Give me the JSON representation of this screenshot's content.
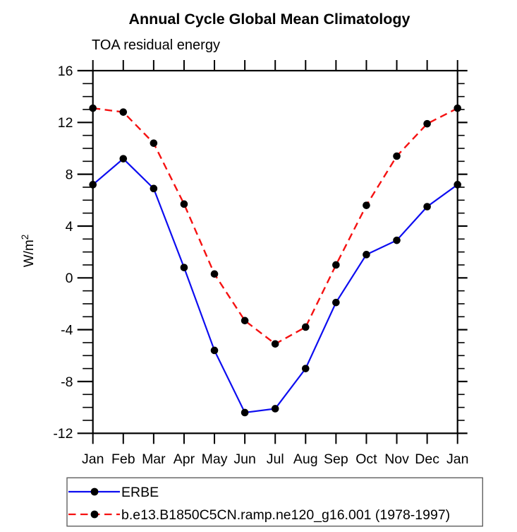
{
  "header": {
    "title": "Annual Cycle Global Mean Climatology",
    "subtitle": "TOA residual energy"
  },
  "chart_data": {
    "type": "line",
    "title": "Annual Cycle Global Mean Climatology",
    "subtitle": "TOA residual energy",
    "categories": [
      "Jan",
      "Feb",
      "Mar",
      "Apr",
      "May",
      "Jun",
      "Jul",
      "Aug",
      "Sep",
      "Oct",
      "Nov",
      "Dec",
      "Jan"
    ],
    "series": [
      {
        "name": "ERBE",
        "color": "#0d0df0",
        "line_style": "solid",
        "marker": "filled-circle",
        "marker_color": "#000000",
        "values": [
          7.2,
          9.2,
          6.9,
          0.8,
          -5.6,
          -10.4,
          -10.1,
          -7.0,
          -1.9,
          1.8,
          2.9,
          5.5,
          7.2
        ]
      },
      {
        "name": "b.e13.B1850C5CN.ramp.ne120_g16.001 (1978-1997)",
        "color": "#f51111",
        "line_style": "dashed",
        "marker": "filled-circle",
        "marker_color": "#000000",
        "values": [
          13.1,
          12.8,
          10.4,
          5.7,
          0.3,
          -3.3,
          -5.1,
          -3.8,
          1.0,
          5.6,
          9.4,
          11.9,
          13.1
        ]
      }
    ],
    "xlabel": "",
    "ylabel": {
      "base": "W/m",
      "exponent": "2"
    },
    "ylim": [
      -12,
      16
    ],
    "yticks": [
      16,
      12,
      8,
      4,
      0,
      -4,
      -8,
      -12
    ],
    "y_minor_step": 1,
    "grid": false,
    "legend_position": "bottom-left-box",
    "axis_color": "#000000"
  }
}
